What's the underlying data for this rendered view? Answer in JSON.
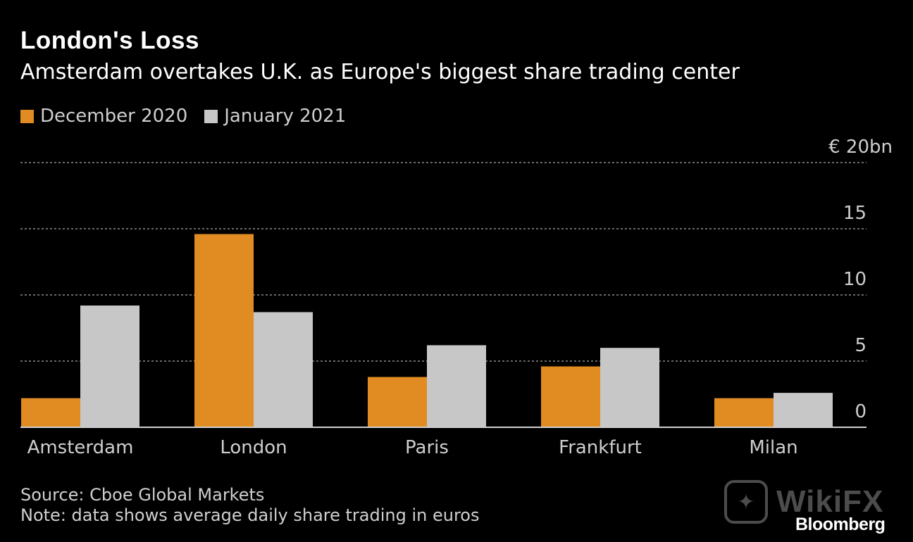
{
  "title": "London's Loss",
  "subtitle": "Amsterdam overtakes U.K. as Europe's biggest share trading center",
  "legend": {
    "series_a": "December 2020",
    "series_b": "January 2021"
  },
  "colors": {
    "series_a": "#e08c22",
    "series_b": "#c7c7c7",
    "background": "#000000",
    "gridline": "#8c8c8c"
  },
  "footer": {
    "source": "Source: Cboe Global Markets",
    "note": "Note: data shows average daily share trading in euros",
    "brand": "Bloomberg"
  },
  "watermark": {
    "text": "WikiFX",
    "icon": "eagle-icon"
  },
  "chart_data": {
    "type": "bar",
    "title": "London's Loss",
    "subtitle": "Amsterdam overtakes U.K. as Europe's biggest share trading center",
    "categories": [
      "Amsterdam",
      "London",
      "Paris",
      "Frankfurt",
      "Milan"
    ],
    "series": [
      {
        "name": "December 2020",
        "values": [
          2.2,
          14.6,
          3.8,
          4.6,
          2.2
        ]
      },
      {
        "name": "January 2021",
        "values": [
          9.2,
          8.7,
          6.2,
          6.0,
          2.6
        ]
      }
    ],
    "yticks": [
      0,
      5,
      10,
      15,
      20
    ],
    "ytick_labels": [
      "0",
      "5",
      "10",
      "15",
      "20"
    ],
    "y_unit_prefix": "€",
    "y_unit_suffix": "bn",
    "ylim": [
      0,
      20
    ],
    "grid": true,
    "legend_position": "top-left",
    "xlabel": "",
    "ylabel": ""
  }
}
